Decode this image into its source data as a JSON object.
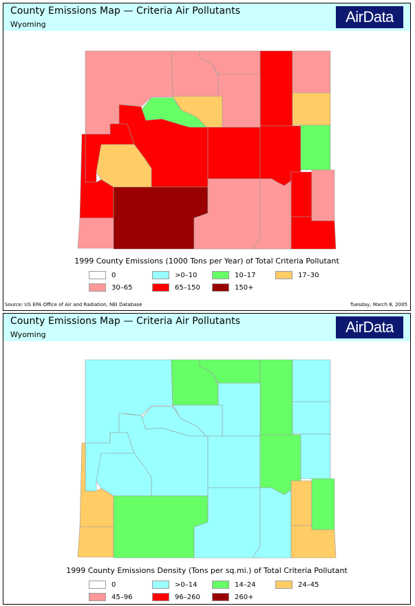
{
  "panels": [
    {
      "title": "County Emissions Map — Criteria Air Pollutants",
      "subtitle": "Wyoming",
      "logo": "AirData",
      "caption": "1999 County Emissions (1000 Tons per Year) of Total Criteria Pollutant",
      "legend": [
        {
          "label": "0",
          "color": "#ffffff"
        },
        {
          "label": ">0–10",
          "color": "#99ffff"
        },
        {
          "label": "10–17",
          "color": "#66ff66"
        },
        {
          "label": "17–30",
          "color": "#ffcc66"
        },
        {
          "label": "30–65",
          "color": "#ff9999"
        },
        {
          "label": "65–150",
          "color": "#ff0000"
        },
        {
          "label": "150+",
          "color": "#990000"
        }
      ],
      "source": "Source: US EPA Office of Air and Radiation, NEI Database",
      "date": "Tuesday, March 8, 2005"
    },
    {
      "title": "County Emissions Map — Criteria Air Pollutants",
      "subtitle": "Wyoming",
      "logo": "AirData",
      "caption": "1999 County Emissions Density (Tons per sq.mi.) of Total Criteria Pollutant",
      "legend": [
        {
          "label": "0",
          "color": "#ffffff"
        },
        {
          "label": ">0–14",
          "color": "#99ffff"
        },
        {
          "label": "14–24",
          "color": "#66ff66"
        },
        {
          "label": "24–45",
          "color": "#ffcc66"
        },
        {
          "label": "45–96",
          "color": "#ff9999"
        },
        {
          "label": "96–260",
          "color": "#ff0000"
        },
        {
          "label": "260+",
          "color": "#990000"
        }
      ]
    }
  ]
}
